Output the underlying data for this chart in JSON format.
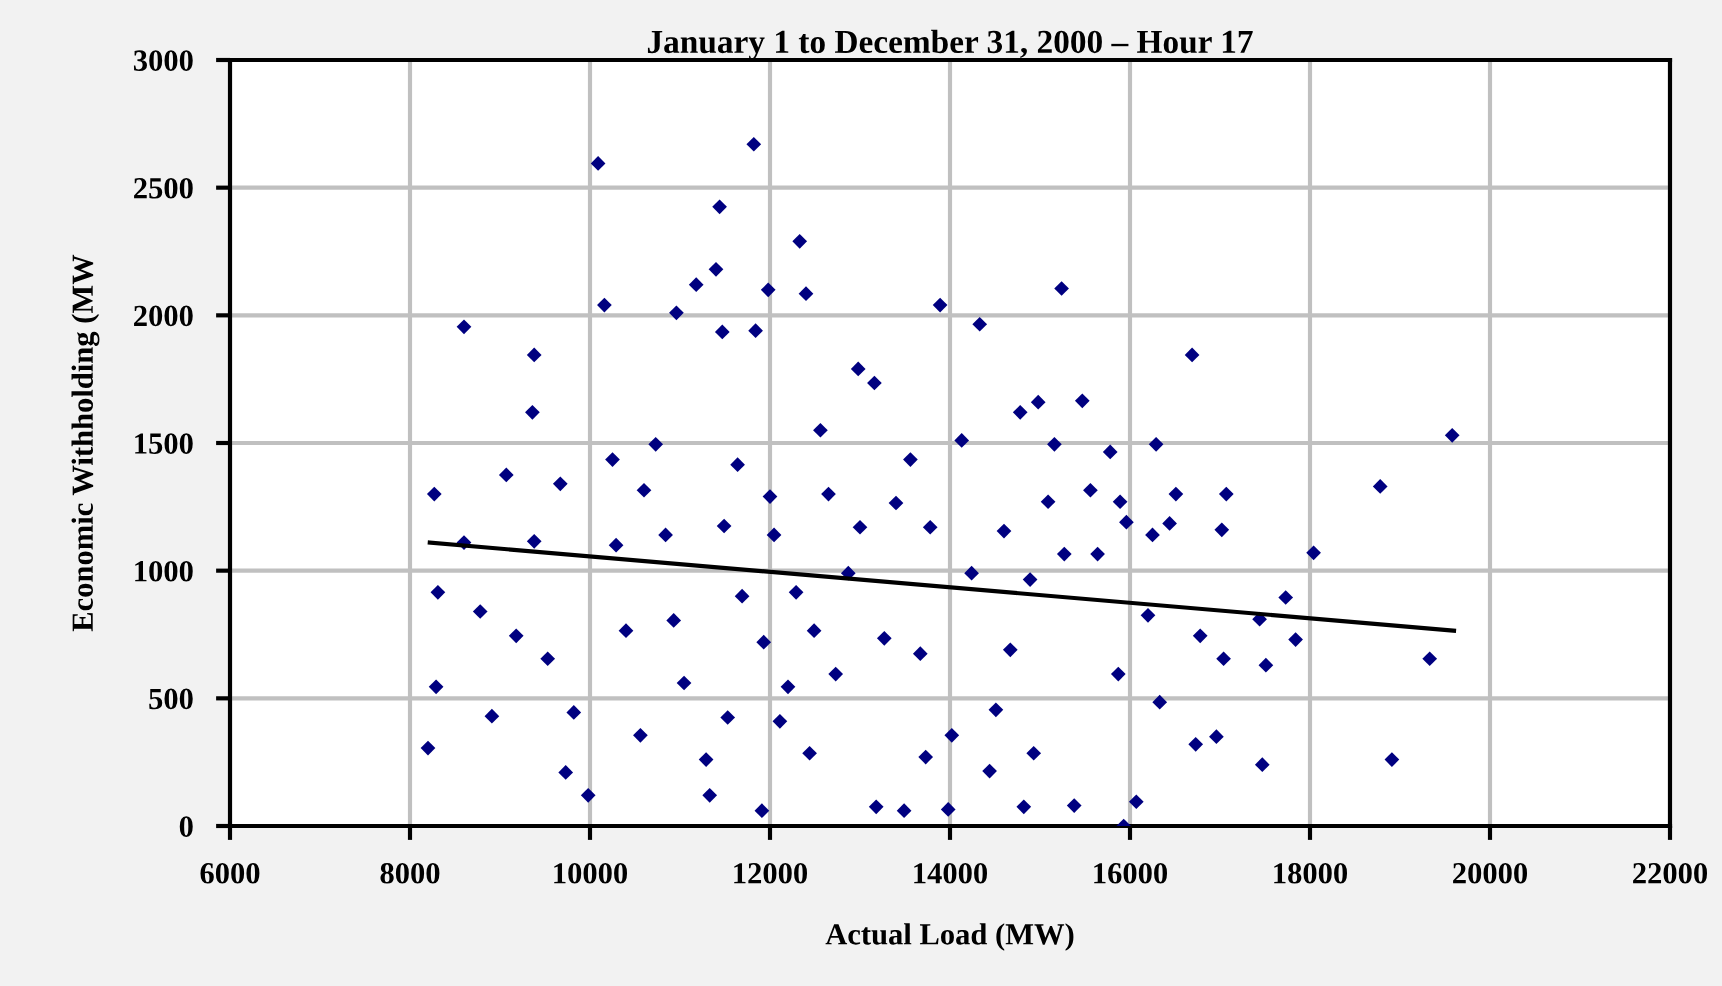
{
  "chart_data": {
    "type": "scatter",
    "title": "January 1 to December 31, 2000 – Hour 17",
    "xlabel": "Actual Load (MW)",
    "ylabel": "Economic Withholding (MW",
    "xlim": [
      6000,
      22000
    ],
    "xticks": [
      6000,
      8000,
      10000,
      12000,
      14000,
      16000,
      18000,
      20000,
      22000
    ],
    "ylim": [
      0,
      3000
    ],
    "yticks": [
      0,
      500,
      1000,
      1500,
      2000,
      2500,
      3000
    ],
    "grid": true,
    "marker": "diamond",
    "series": [
      {
        "color": "#000080",
        "x": [
          8200,
          8290,
          8310,
          8270,
          8600,
          8600,
          8780,
          8910,
          9070,
          9180,
          9360,
          9380,
          9380,
          9530,
          9670,
          9730,
          9820,
          9980,
          10090,
          10160,
          10250,
          10290,
          10400,
          10560,
          10600,
          10730,
          10840,
          10930,
          10960,
          11045,
          11180,
          11290,
          11330,
          11400,
          11440,
          11470,
          11490,
          11530,
          11640,
          11690,
          11820,
          11840,
          11910,
          11930,
          11980,
          12000,
          12045,
          12110,
          12200,
          12290,
          12330,
          12400,
          12440,
          12490,
          12560,
          12650,
          12730,
          12870,
          12980,
          13000,
          13160,
          13180,
          13270,
          13400,
          13490,
          13560,
          13670,
          13730,
          13780,
          13890,
          13980,
          14020,
          14130,
          14240,
          14330,
          14440,
          14510,
          14600,
          14670,
          14780,
          14820,
          14890,
          14930,
          14980,
          15090,
          15160,
          15240,
          15270,
          15380,
          15470,
          15560,
          15640,
          15780,
          15870,
          15890,
          15930,
          15960,
          16070,
          16200,
          16250,
          16290,
          16330,
          16440,
          16510,
          16690,
          16730,
          16780,
          17020,
          17040,
          17070,
          16960,
          17440,
          17510,
          17470,
          17730,
          17840,
          18040,
          18780,
          18910,
          19330,
          19580
        ],
        "values": [
          305,
          545,
          915,
          1300,
          1955,
          1110,
          840,
          430,
          1375,
          745,
          1620,
          1845,
          1115,
          655,
          1340,
          210,
          445,
          120,
          2595,
          2040,
          1435,
          1100,
          765,
          355,
          1315,
          1495,
          1140,
          805,
          2010,
          560,
          2120,
          260,
          120,
          2180,
          2425,
          1935,
          1175,
          425,
          1415,
          900,
          2670,
          1940,
          60,
          720,
          2100,
          1290,
          1140,
          410,
          545,
          915,
          2290,
          2085,
          285,
          765,
          1550,
          1300,
          595,
          990,
          1790,
          1170,
          1735,
          75,
          735,
          1265,
          60,
          1435,
          675,
          270,
          1170,
          2040,
          65,
          355,
          1510,
          990,
          1965,
          215,
          455,
          1155,
          690,
          1620,
          75,
          965,
          285,
          1660,
          1270,
          1495,
          2105,
          1065,
          80,
          1665,
          1315,
          1065,
          1465,
          595,
          1270,
          0,
          1190,
          95,
          825,
          1140,
          1495,
          485,
          1185,
          1300,
          1845,
          320,
          745,
          1160,
          655,
          1300,
          350,
          810,
          630,
          240,
          895,
          730,
          1070,
          1330,
          260,
          655,
          1530
        ]
      },
      {
        "type": "line",
        "color": "#000000",
        "marker": "none",
        "line_style": "solid",
        "x": [
          8220,
          19600
        ],
        "values": [
          1110,
          765
        ]
      }
    ]
  }
}
